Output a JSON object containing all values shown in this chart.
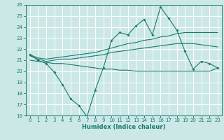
{
  "title": "",
  "xlabel": "Humidex (Indice chaleur)",
  "bg_color": "#cbe8e7",
  "grid_color": "#ffffff",
  "line_color": "#1a7a6e",
  "xlim": [
    -0.5,
    23.5
  ],
  "ylim": [
    16,
    26
  ],
  "xticks": [
    0,
    1,
    2,
    3,
    4,
    5,
    6,
    7,
    8,
    9,
    10,
    11,
    12,
    13,
    14,
    15,
    16,
    17,
    18,
    19,
    20,
    21,
    22,
    23
  ],
  "yticks": [
    16,
    17,
    18,
    19,
    20,
    21,
    22,
    23,
    24,
    25,
    26
  ],
  "series": {
    "main": {
      "x": [
        0,
        1,
        2,
        3,
        4,
        5,
        6,
        7,
        8,
        9,
        10,
        11,
        12,
        13,
        14,
        15,
        16,
        17,
        18,
        19,
        20,
        21,
        22,
        23
      ],
      "y": [
        21.5,
        21.0,
        20.7,
        19.9,
        18.8,
        17.5,
        16.9,
        15.9,
        18.3,
        20.3,
        22.8,
        23.5,
        23.3,
        24.1,
        24.7,
        23.3,
        25.8,
        24.8,
        23.7,
        21.8,
        20.2,
        20.9,
        20.7,
        20.3
      ]
    },
    "upper_band": {
      "x": [
        0,
        1,
        2,
        3,
        4,
        5,
        6,
        7,
        8,
        9,
        10,
        11,
        12,
        13,
        14,
        15,
        16,
        17,
        18,
        19,
        20,
        21,
        22,
        23
      ],
      "y": [
        21.5,
        21.2,
        21.1,
        21.2,
        21.3,
        21.4,
        21.5,
        21.6,
        21.7,
        21.9,
        22.1,
        22.3,
        22.5,
        22.6,
        22.8,
        22.9,
        23.1,
        23.2,
        23.4,
        23.5,
        23.5,
        23.5,
        23.5,
        23.5
      ]
    },
    "mid_band": {
      "x": [
        0,
        1,
        2,
        3,
        4,
        5,
        6,
        7,
        8,
        9,
        10,
        11,
        12,
        13,
        14,
        15,
        16,
        17,
        18,
        19,
        20,
        21,
        22,
        23
      ],
      "y": [
        21.4,
        21.1,
        20.9,
        21.0,
        21.1,
        21.1,
        21.2,
        21.3,
        21.4,
        21.5,
        21.7,
        21.8,
        21.9,
        22.0,
        22.1,
        22.2,
        22.3,
        22.4,
        22.5,
        22.5,
        22.5,
        22.4,
        22.3,
        22.2
      ]
    },
    "lower_band": {
      "x": [
        0,
        1,
        2,
        3,
        4,
        5,
        6,
        7,
        8,
        9,
        10,
        11,
        12,
        13,
        14,
        15,
        16,
        17,
        18,
        19,
        20,
        21,
        22,
        23
      ],
      "y": [
        21.0,
        20.9,
        20.8,
        20.7,
        20.7,
        20.6,
        20.5,
        20.4,
        20.3,
        20.2,
        20.2,
        20.1,
        20.1,
        20.0,
        20.0,
        20.0,
        20.0,
        20.0,
        20.0,
        20.0,
        20.0,
        20.0,
        20.0,
        20.3
      ]
    }
  }
}
